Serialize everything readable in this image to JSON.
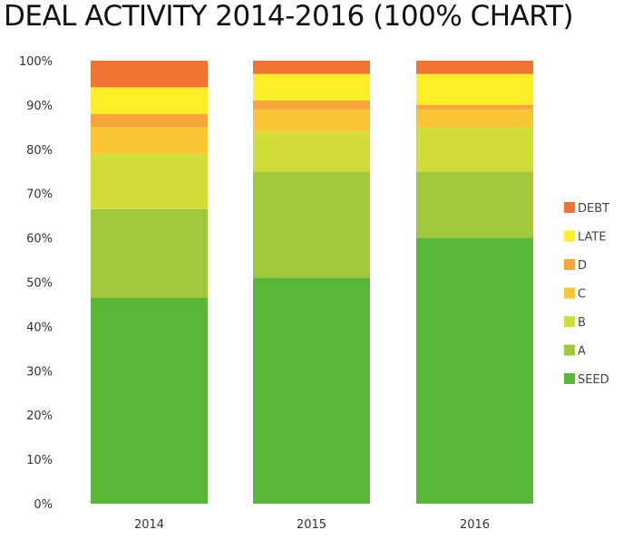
{
  "chart_data": {
    "type": "bar",
    "stacked": true,
    "title": "DEAL ACTIVITY 2014-2016 (100% CHART)",
    "categories": [
      "2014",
      "2015",
      "2016"
    ],
    "ylim": [
      0,
      100
    ],
    "yticks": [
      "0%",
      "10%",
      "20%",
      "30%",
      "40%",
      "50%",
      "60%",
      "70%",
      "80%",
      "90%",
      "100%"
    ],
    "grid": false,
    "legend_position": "right",
    "series": [
      {
        "name": "SEED",
        "color": "#5ab636",
        "values": [
          46.5,
          51,
          60
        ]
      },
      {
        "name": "A",
        "color": "#a0c83a",
        "values": [
          20,
          24,
          15
        ]
      },
      {
        "name": "B",
        "color": "#d3dd3a",
        "values": [
          12.5,
          9,
          10
        ]
      },
      {
        "name": "C",
        "color": "#f9c535",
        "values": [
          6,
          5,
          4
        ]
      },
      {
        "name": "D",
        "color": "#f7a53a",
        "values": [
          3,
          2,
          1
        ]
      },
      {
        "name": "LATE",
        "color": "#fdee28",
        "values": [
          6,
          6,
          7
        ]
      },
      {
        "name": "DEBT",
        "color": "#ef7530",
        "values": [
          6,
          3,
          3
        ]
      }
    ]
  }
}
